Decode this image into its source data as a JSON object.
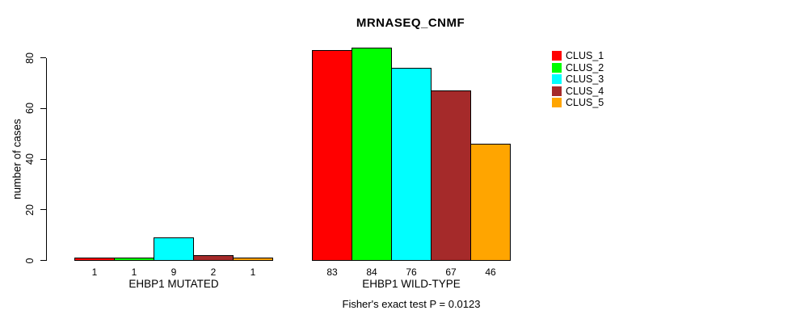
{
  "title": "MRNASEQ_CNMF",
  "caption": "Fisher's exact test P = 0.0123",
  "chart_data": {
    "type": "bar",
    "title": "MRNASEQ_CNMF",
    "xlabel": "",
    "ylabel": "number of cases",
    "ylim": [
      0,
      80
    ],
    "yticks": [
      0,
      20,
      40,
      60,
      80
    ],
    "grid": false,
    "bar_value_labels_shown": true,
    "categories": [
      "EHBP1 MUTATED",
      "EHBP1 WILD-TYPE"
    ],
    "series": [
      {
        "name": "CLUS_1",
        "color": "#FF0000",
        "values": [
          1,
          83
        ]
      },
      {
        "name": "CLUS_2",
        "color": "#00FF00",
        "values": [
          1,
          84
        ]
      },
      {
        "name": "CLUS_3",
        "color": "#00FFFF",
        "values": [
          9,
          76
        ]
      },
      {
        "name": "CLUS_4",
        "color": "#A52A2A",
        "values": [
          2,
          67
        ]
      },
      {
        "name": "CLUS_5",
        "color": "#FFA500",
        "values": [
          1,
          46
        ]
      }
    ],
    "legend_position": "right",
    "legend_entries": [
      "CLUS_1",
      "CLUS_2",
      "CLUS_3",
      "CLUS_4",
      "CLUS_5"
    ],
    "annotation": "Fisher's exact test P = 0.0123",
    "axis_color": "#000000",
    "bar_border_color": "#000000",
    "background_color": "#FFFFFF"
  }
}
